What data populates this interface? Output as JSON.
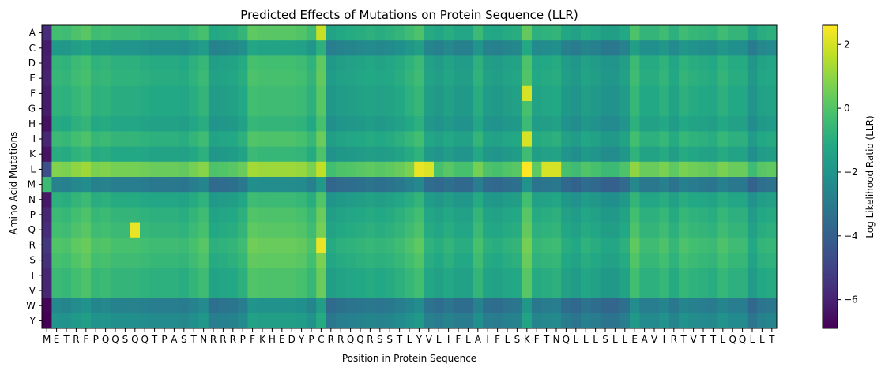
{
  "chart_data": {
    "type": "heatmap",
    "title": "Predicted Effects of Mutations on Protein Sequence (LLR)",
    "xlabel": "Position in Protein Sequence",
    "ylabel": "Amino Acid Mutations",
    "colorbar_label": "Log Likelihood Ratio (LLR)",
    "colormap": "viridis",
    "value_range": [
      -6.9,
      2.6
    ],
    "colorbar_ticks": [
      2,
      0,
      -2,
      -4,
      -6
    ],
    "positions": [
      "M",
      "E",
      "T",
      "R",
      "F",
      "P",
      "Q",
      "Q",
      "S",
      "Q",
      "Q",
      "T",
      "P",
      "A",
      "S",
      "T",
      "N",
      "R",
      "R",
      "R",
      "P",
      "F",
      "K",
      "H",
      "E",
      "D",
      "Y",
      "P",
      "C",
      "R",
      "R",
      "Q",
      "Q",
      "R",
      "S",
      "S",
      "T",
      "L",
      "Y",
      "V",
      "L",
      "I",
      "F",
      "L",
      "A",
      "I",
      "F",
      "L",
      "S",
      "K",
      "F",
      "T",
      "N",
      "Q",
      "L",
      "L",
      "L",
      "S",
      "L",
      "L",
      "E",
      "A",
      "V",
      "I",
      "R",
      "T",
      "V",
      "T",
      "T",
      "L",
      "Q",
      "Q",
      "L",
      "L",
      "T"
    ],
    "mutations": [
      "A",
      "C",
      "D",
      "E",
      "F",
      "G",
      "H",
      "I",
      "K",
      "L",
      "M",
      "N",
      "P",
      "Q",
      "R",
      "S",
      "T",
      "V",
      "W",
      "Y"
    ],
    "row_offsets": {
      "A": 0.2,
      "C": -1.3,
      "D": -0.2,
      "E": -0.1,
      "F": -0.3,
      "G": -0.3,
      "H": -0.6,
      "I": 0.0,
      "K": -0.5,
      "L": 1.3,
      "M": -2.2,
      "N": -0.4,
      "P": 0.0,
      "Q": 0.2,
      "R": 0.5,
      "S": 0.3,
      "T": 0.0,
      "V": 0.0,
      "W": -2.0,
      "Y": -1.5
    },
    "column_offsets": [
      -5.0,
      0.4,
      0.3,
      0.6,
      0.8,
      0.3,
      0.4,
      0.2,
      0.2,
      0.2,
      0.1,
      0.0,
      0.0,
      0.0,
      -0.1,
      0.2,
      0.5,
      -0.5,
      -0.4,
      -0.3,
      0.0,
      0.9,
      0.8,
      0.8,
      0.8,
      0.8,
      0.7,
      0.3,
      1.3,
      -0.7,
      -0.5,
      -0.4,
      -0.3,
      -0.2,
      -0.3,
      -0.2,
      0.0,
      0.3,
      0.6,
      -0.4,
      -0.6,
      -0.3,
      -0.6,
      -0.6,
      0.2,
      -0.5,
      -0.6,
      -0.4,
      -0.3,
      1.0,
      -0.2,
      -0.1,
      0.0,
      -0.6,
      -0.8,
      -0.4,
      -0.6,
      -0.9,
      -0.9,
      -0.5,
      0.6,
      0.0,
      0.0,
      0.3,
      -0.2,
      0.3,
      0.1,
      0.0,
      -0.1,
      0.3,
      0.0,
      0.0,
      -0.8,
      -0.3,
      -0.2
    ],
    "cell_overrides": [
      {
        "mutation": "Q",
        "position": 9,
        "value": 2.3
      },
      {
        "mutation": "L",
        "position": 49,
        "value": 2.6
      },
      {
        "mutation": "F",
        "position": 49,
        "value": 2.0
      },
      {
        "mutation": "I",
        "position": 49,
        "value": 2.0
      },
      {
        "mutation": "L",
        "position": 38,
        "value": 2.3
      },
      {
        "mutation": "L",
        "position": 39,
        "value": 2.1
      },
      {
        "mutation": "L",
        "position": 51,
        "value": 2.0
      },
      {
        "mutation": "L",
        "position": 52,
        "value": 2.0
      },
      {
        "mutation": "R",
        "position": 28,
        "value": 2.3
      },
      {
        "mutation": "A",
        "position": 28,
        "value": 1.8
      },
      {
        "mutation": "C",
        "position": 0,
        "value": -6.2
      },
      {
        "mutation": "W",
        "position": 0,
        "value": -6.8
      },
      {
        "mutation": "M",
        "position": 0,
        "value": -0.5
      }
    ]
  }
}
